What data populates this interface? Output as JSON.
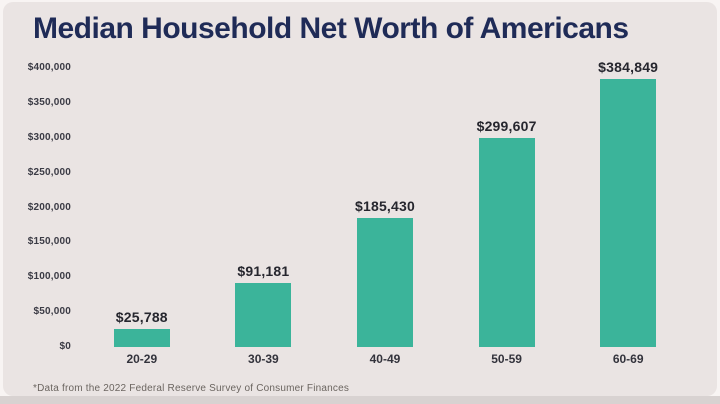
{
  "chart_data": {
    "type": "bar",
    "title": "Median Household Net Worth of Americans",
    "categories": [
      "20-29",
      "30-39",
      "40-49",
      "50-59",
      "60-69"
    ],
    "values": [
      25788,
      91181,
      185430,
      299607,
      384849
    ],
    "value_labels": [
      "$25,788",
      "$91,181",
      "$185,430",
      "$299,607",
      "$384,849"
    ],
    "xlabel": "",
    "ylabel": "",
    "ylim": [
      0,
      400000
    ],
    "y_ticks": [
      {
        "value": 400000,
        "label": "$400,000"
      },
      {
        "value": 350000,
        "label": "$350,000"
      },
      {
        "value": 300000,
        "label": "$300,000"
      },
      {
        "value": 250000,
        "label": "$250,000"
      },
      {
        "value": 200000,
        "label": "$200,000"
      },
      {
        "value": 150000,
        "label": "$150,000"
      },
      {
        "value": 100000,
        "label": "$100,000"
      },
      {
        "value": 50000,
        "label": "$50,000"
      },
      {
        "value": 0,
        "label": "$0"
      }
    ],
    "grid": false,
    "legend": false,
    "bar_color": "#3BB49A",
    "background_color": "#EAE4E3",
    "title_color": "#1F2B57",
    "footnote": "*Data from the 2022 Federal Reserve Survey of Consumer Finances"
  }
}
